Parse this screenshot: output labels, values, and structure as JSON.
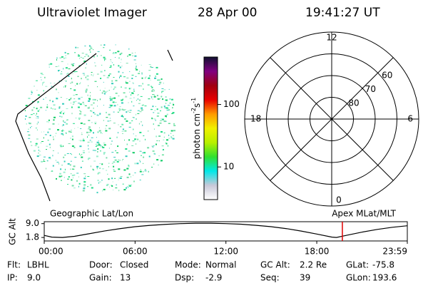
{
  "header": {
    "title": "Ultraviolet Imager",
    "date": "28 Apr 00",
    "time": "19:41:27 UT"
  },
  "image": {
    "label": "Geographic Lat/Lon"
  },
  "colorbar": {
    "label": [
      "photon cm",
      "-2",
      "s",
      "-1"
    ],
    "scale": "log",
    "lim": [
      3,
      575
    ],
    "ticks": [
      10,
      100
    ],
    "colors": [
      "#ffffff",
      "#c8c8d8",
      "#00e8e8",
      "#30e030",
      "#b8f000",
      "#f0f000",
      "#ff9a00",
      "#e80000",
      "#a00010",
      "#800080",
      "#101030"
    ]
  },
  "polar": {
    "label": "Apex MLat/MLT",
    "lat_min": 50,
    "rings": [
      60,
      70,
      80
    ],
    "mlt": [
      {
        "value": 12,
        "label": "12"
      },
      {
        "value": 18,
        "label": "18"
      },
      {
        "value": 6,
        "label": "6"
      },
      {
        "value": 0,
        "label": "0"
      }
    ]
  },
  "chart_data": {
    "type": "line",
    "ylabel": "GC Alt",
    "x": [
      0,
      0.5,
      1.2,
      2,
      3,
      4,
      5,
      6,
      7,
      8,
      9,
      10,
      11,
      12,
      13,
      14,
      15,
      16,
      17,
      18,
      19,
      19.3,
      20,
      21,
      22,
      23,
      23.98
    ],
    "values": [
      2.9,
      2.0,
      1.8,
      2.4,
      3.8,
      5.2,
      6.4,
      7.4,
      8.1,
      8.6,
      9.0,
      9.2,
      9.2,
      9.0,
      8.7,
      8.1,
      7.4,
      6.4,
      5.1,
      3.6,
      2.0,
      1.8,
      3.0,
      4.6,
      6.0,
      7.1,
      7.9
    ],
    "color": "#000000",
    "xlim": [
      0,
      23.98
    ],
    "ylim": [
      0,
      10
    ],
    "xticks": [
      {
        "value": 0,
        "label": "00:00"
      },
      {
        "value": 6,
        "label": "06:00"
      },
      {
        "value": 12,
        "label": "12:00"
      },
      {
        "value": 18,
        "label": "18:00"
      },
      {
        "value": 23.98,
        "label": "23:59"
      }
    ],
    "yticks": [
      {
        "value": 1.8,
        "label": "1.8"
      },
      {
        "value": 9.0,
        "label": "9.0"
      }
    ],
    "marker": 19.69,
    "marker_color": "#e00000"
  },
  "footer": [
    [
      {
        "label": "Flt:",
        "value": "LBHL"
      },
      {
        "label": "Door:",
        "value": "Closed"
      },
      {
        "label": "Mode:",
        "value": "Normal"
      },
      {
        "label": "GC Alt:",
        "value": "2.2 Re"
      },
      {
        "label": "GLat:",
        "value": "-75.8"
      }
    ],
    [
      {
        "label": "IP:",
        "value": "9.0"
      },
      {
        "label": "Gain:",
        "value": "13"
      },
      {
        "label": "Dsp:",
        "value": "-2.9"
      },
      {
        "label": "Seq:",
        "value": "39"
      },
      {
        "label": "GLon:",
        "value": "193.6"
      }
    ]
  ]
}
